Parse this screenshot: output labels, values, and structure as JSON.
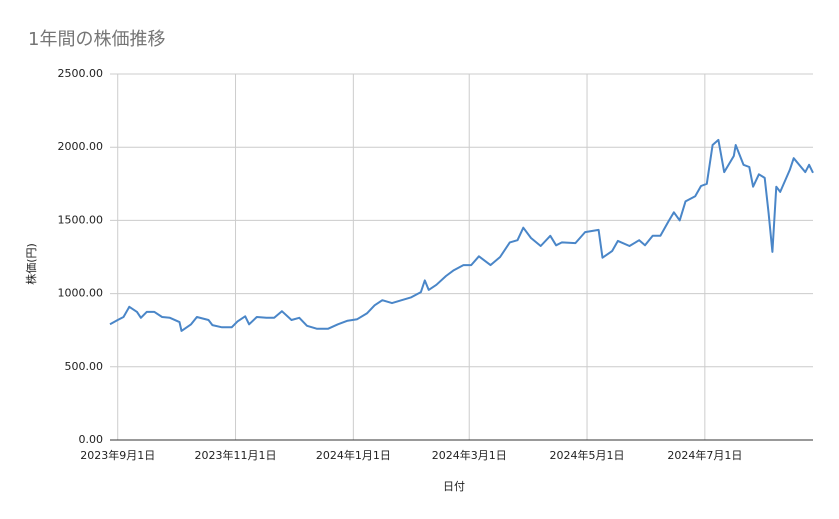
{
  "chart_data": {
    "type": "line",
    "title": "1年間の株価推移",
    "x_label": "日付",
    "y_label": "株価(円)",
    "x": [
      "2023-08-28",
      "2023-09-01",
      "2023-09-04",
      "2023-09-07",
      "2023-09-11",
      "2023-09-13",
      "2023-09-16",
      "2023-09-20",
      "2023-09-24",
      "2023-09-28",
      "2023-10-03",
      "2023-10-04",
      "2023-10-09",
      "2023-10-12",
      "2023-10-18",
      "2023-10-20",
      "2023-10-25",
      "2023-10-30",
      "2023-11-02",
      "2023-11-06",
      "2023-11-08",
      "2023-11-12",
      "2023-11-17",
      "2023-11-21",
      "2023-11-25",
      "2023-11-30",
      "2023-12-04",
      "2023-12-08",
      "2023-12-13",
      "2023-12-19",
      "2023-12-24",
      "2023-12-29",
      "2024-01-03",
      "2024-01-08",
      "2024-01-12",
      "2024-01-16",
      "2024-01-21",
      "2024-01-26",
      "2024-01-31",
      "2024-02-05",
      "2024-02-07",
      "2024-02-09",
      "2024-02-13",
      "2024-02-18",
      "2024-02-22",
      "2024-02-27",
      "2024-03-02",
      "2024-03-06",
      "2024-03-12",
      "2024-03-17",
      "2024-03-22",
      "2024-03-26",
      "2024-03-29",
      "2024-04-02",
      "2024-04-07",
      "2024-04-12",
      "2024-04-15",
      "2024-04-18",
      "2024-04-25",
      "2024-04-30",
      "2024-05-07",
      "2024-05-09",
      "2024-05-14",
      "2024-05-17",
      "2024-05-23",
      "2024-05-28",
      "2024-05-31",
      "2024-06-04",
      "2024-06-08",
      "2024-06-12",
      "2024-06-15",
      "2024-06-18",
      "2024-06-21",
      "2024-06-26",
      "2024-06-29",
      "2024-07-02",
      "2024-07-05",
      "2024-07-08",
      "2024-07-11",
      "2024-07-16",
      "2024-07-17",
      "2024-07-21",
      "2024-07-24",
      "2024-07-26",
      "2024-07-29",
      "2024-08-01",
      "2024-08-03",
      "2024-08-05",
      "2024-08-07",
      "2024-08-09",
      "2024-08-14",
      "2024-08-16",
      "2024-08-22",
      "2024-08-24",
      "2024-08-26"
    ],
    "series": [
      {
        "name": "株価",
        "color": "#4a86c8",
        "values": [
          790,
          820,
          840,
          910,
          875,
          835,
          875,
          875,
          840,
          835,
          805,
          745,
          790,
          840,
          820,
          785,
          770,
          770,
          810,
          845,
          790,
          840,
          835,
          835,
          880,
          820,
          835,
          780,
          760,
          760,
          790,
          815,
          825,
          865,
          920,
          955,
          935,
          955,
          975,
          1010,
          1090,
          1025,
          1060,
          1120,
          1160,
          1195,
          1195,
          1255,
          1195,
          1250,
          1350,
          1365,
          1450,
          1380,
          1325,
          1395,
          1330,
          1350,
          1345,
          1420,
          1435,
          1245,
          1290,
          1360,
          1325,
          1365,
          1330,
          1395,
          1395,
          1490,
          1555,
          1500,
          1630,
          1665,
          1735,
          1750,
          2015,
          2050,
          1830,
          1940,
          2015,
          1880,
          1865,
          1730,
          1815,
          1790,
          1550,
          1285,
          1730,
          1695,
          1845,
          1925,
          1830,
          1880,
          1825
        ]
      }
    ],
    "xlim": [
      "2023-08-28",
      "2024-08-26"
    ],
    "xticks": [
      {
        "value": "2023-09-01",
        "label": "2023年9月1日"
      },
      {
        "value": "2023-11-01",
        "label": "2023年11月1日"
      },
      {
        "value": "2024-01-01",
        "label": "2024年1月1日"
      },
      {
        "value": "2024-03-01",
        "label": "2024年3月1日"
      },
      {
        "value": "2024-05-01",
        "label": "2024年5月1日"
      },
      {
        "value": "2024-07-01",
        "label": "2024年7月1日"
      }
    ],
    "ylim": [
      0,
      2500
    ],
    "yticks": [
      {
        "value": 0,
        "label": "0.00"
      },
      {
        "value": 500,
        "label": "500.00"
      },
      {
        "value": 1000,
        "label": "1000.00"
      },
      {
        "value": 1500,
        "label": "1500.00"
      },
      {
        "value": 2000,
        "label": "2000.00"
      },
      {
        "value": 2500,
        "label": "2500.00"
      }
    ],
    "grid": true
  }
}
